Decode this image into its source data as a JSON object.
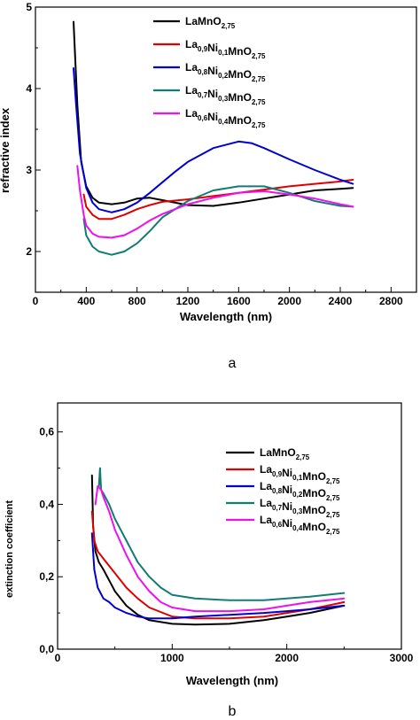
{
  "chart_data": [
    {
      "type": "line",
      "panel_label": "a",
      "xlabel": "Wavelength (nm)",
      "ylabel": "refractive index",
      "xlim": [
        0,
        3000
      ],
      "ylim": [
        1.5,
        5
      ],
      "xticks": [
        "0",
        "400",
        "800",
        "1200",
        "1600",
        "2000",
        "2400",
        "2800"
      ],
      "yticks": [
        "2",
        "3",
        "4",
        "5"
      ],
      "legend_position": "top-left",
      "series": [
        {
          "name": "LaMnO2,75",
          "legend": {
            "main": [
              "La",
              "MnO"
            ],
            "subs": [
              "",
              "2,75"
            ]
          },
          "color": "#000000",
          "x": [
            300,
            330,
            360,
            400,
            450,
            500,
            600,
            700,
            800,
            900,
            1000,
            1200,
            1400,
            1600,
            1800,
            2000,
            2200,
            2400,
            2500
          ],
          "y": [
            4.82,
            3.8,
            3.1,
            2.8,
            2.66,
            2.6,
            2.58,
            2.6,
            2.65,
            2.66,
            2.63,
            2.57,
            2.56,
            2.6,
            2.65,
            2.7,
            2.75,
            2.77,
            2.78
          ]
        },
        {
          "name": "La0,9Ni0,1MnO2,75",
          "legend": {
            "main": [
              "La",
              "Ni",
              "MnO"
            ],
            "subs": [
              "0,9",
              "0,1",
              "2,75"
            ]
          },
          "color": "#e00000",
          "x": [
            380,
            400,
            450,
            500,
            600,
            700,
            800,
            900,
            1000,
            1200,
            1400,
            1600,
            1800,
            2000,
            2200,
            2400,
            2500
          ],
          "y": [
            2.7,
            2.55,
            2.45,
            2.4,
            2.4,
            2.45,
            2.52,
            2.57,
            2.61,
            2.64,
            2.68,
            2.72,
            2.76,
            2.8,
            2.83,
            2.86,
            2.88
          ]
        },
        {
          "name": "La0,8Ni0,2MnO2,75",
          "legend": {
            "main": [
              "La",
              "Ni",
              "MnO"
            ],
            "subs": [
              "0,8",
              "0,2",
              "2,75"
            ]
          },
          "color": "#0000d0",
          "x": [
            300,
            320,
            350,
            400,
            450,
            500,
            600,
            700,
            800,
            900,
            1000,
            1100,
            1200,
            1400,
            1600,
            1700,
            1800,
            2000,
            2200,
            2400,
            2500
          ],
          "y": [
            4.25,
            3.8,
            3.2,
            2.78,
            2.6,
            2.52,
            2.48,
            2.52,
            2.6,
            2.72,
            2.85,
            2.98,
            3.1,
            3.27,
            3.35,
            3.33,
            3.27,
            3.13,
            3.0,
            2.88,
            2.83
          ]
        },
        {
          "name": "La0,7Ni0,3MnO2,75",
          "legend": {
            "main": [
              "La",
              "Ni",
              "MnO"
            ],
            "subs": [
              "0,7",
              "0,3",
              "2,75"
            ]
          },
          "color": "#127c72",
          "x": [
            380,
            400,
            450,
            500,
            600,
            700,
            800,
            900,
            1000,
            1200,
            1400,
            1600,
            1800,
            2000,
            2200,
            2400,
            2500
          ],
          "y": [
            2.4,
            2.2,
            2.06,
            2.0,
            1.96,
            2.0,
            2.1,
            2.25,
            2.42,
            2.62,
            2.75,
            2.8,
            2.8,
            2.72,
            2.62,
            2.56,
            2.55
          ]
        },
        {
          "name": "La0,6Ni0,4MnO2,75",
          "legend": {
            "main": [
              "La",
              "Ni",
              "MnO"
            ],
            "subs": [
              "0,6",
              "0,4",
              "2,75"
            ]
          },
          "color": "#ee10ee",
          "x": [
            330,
            350,
            380,
            400,
            450,
            500,
            600,
            700,
            800,
            900,
            1000,
            1200,
            1400,
            1600,
            1800,
            2000,
            2200,
            2400,
            2500
          ],
          "y": [
            3.05,
            2.75,
            2.45,
            2.32,
            2.22,
            2.18,
            2.17,
            2.2,
            2.28,
            2.38,
            2.46,
            2.58,
            2.66,
            2.72,
            2.74,
            2.7,
            2.65,
            2.58,
            2.55
          ]
        }
      ]
    },
    {
      "type": "line",
      "panel_label": "b",
      "xlabel": "Wavelength (nm)",
      "ylabel": "extinction coefficient",
      "xlim": [
        0,
        3000
      ],
      "ylim": [
        0,
        0.68
      ],
      "xticks": [
        "0",
        "1000",
        "2000",
        "3000"
      ],
      "yticks": [
        "0,0",
        "0,2",
        "0,4",
        "0,6"
      ],
      "legend_position": "top-right",
      "series": [
        {
          "name": "LaMnO2,75",
          "legend": {
            "main": [
              "La",
              "MnO"
            ],
            "subs": [
              "",
              "2,75"
            ]
          },
          "color": "#000000",
          "x": [
            300,
            310,
            330,
            360,
            400,
            450,
            500,
            600,
            700,
            800,
            1000,
            1200,
            1500,
            1800,
            2000,
            2200,
            2500
          ],
          "y": [
            0.48,
            0.34,
            0.27,
            0.24,
            0.22,
            0.19,
            0.16,
            0.12,
            0.095,
            0.08,
            0.07,
            0.068,
            0.07,
            0.08,
            0.09,
            0.1,
            0.12
          ]
        },
        {
          "name": "La0,9Ni0,1MnO2,75",
          "legend": {
            "main": [
              "La",
              "Ni",
              "MnO"
            ],
            "subs": [
              "0,9",
              "0,1",
              "2,75"
            ]
          },
          "color": "#e00000",
          "x": [
            300,
            320,
            350,
            400,
            450,
            500,
            600,
            700,
            800,
            1000,
            1200,
            1500,
            1800,
            2000,
            2200,
            2500
          ],
          "y": [
            0.38,
            0.3,
            0.27,
            0.25,
            0.23,
            0.21,
            0.17,
            0.14,
            0.115,
            0.09,
            0.085,
            0.085,
            0.09,
            0.1,
            0.11,
            0.13
          ]
        },
        {
          "name": "La0,8Ni0,2MnO2,75",
          "legend": {
            "main": [
              "La",
              "Ni",
              "MnO"
            ],
            "subs": [
              "0,8",
              "0,2",
              "2,75"
            ]
          },
          "color": "#0000d0",
          "x": [
            300,
            320,
            350,
            400,
            450,
            500,
            600,
            700,
            800,
            1000,
            1200,
            1500,
            1800,
            2000,
            2200,
            2500
          ],
          "y": [
            0.32,
            0.22,
            0.17,
            0.14,
            0.13,
            0.115,
            0.1,
            0.09,
            0.085,
            0.085,
            0.09,
            0.095,
            0.1,
            0.105,
            0.11,
            0.12
          ]
        },
        {
          "name": "La0,7Ni0,3MnO2,75",
          "legend": {
            "main": [
              "La",
              "Ni",
              "MnO"
            ],
            "subs": [
              "0,7",
              "0,3",
              "2,75"
            ]
          },
          "color": "#127c72",
          "x": [
            360,
            370,
            380,
            400,
            450,
            500,
            600,
            700,
            800,
            900,
            1000,
            1200,
            1500,
            1800,
            2000,
            2200,
            2500
          ],
          "y": [
            0.45,
            0.5,
            0.44,
            0.43,
            0.4,
            0.36,
            0.3,
            0.24,
            0.2,
            0.17,
            0.15,
            0.14,
            0.135,
            0.135,
            0.14,
            0.145,
            0.155
          ]
        },
        {
          "name": "La0,6Ni0,4MnO2,75",
          "legend": {
            "main": [
              "La",
              "Ni",
              "MnO"
            ],
            "subs": [
              "0,6",
              "0,4",
              "2,75"
            ]
          },
          "color": "#ee10ee",
          "x": [
            330,
            350,
            380,
            400,
            450,
            500,
            600,
            700,
            800,
            900,
            1000,
            1200,
            1500,
            1800,
            2000,
            2200,
            2500
          ],
          "y": [
            0.4,
            0.45,
            0.44,
            0.42,
            0.38,
            0.33,
            0.26,
            0.2,
            0.16,
            0.13,
            0.115,
            0.105,
            0.105,
            0.11,
            0.12,
            0.13,
            0.14
          ]
        }
      ]
    }
  ]
}
